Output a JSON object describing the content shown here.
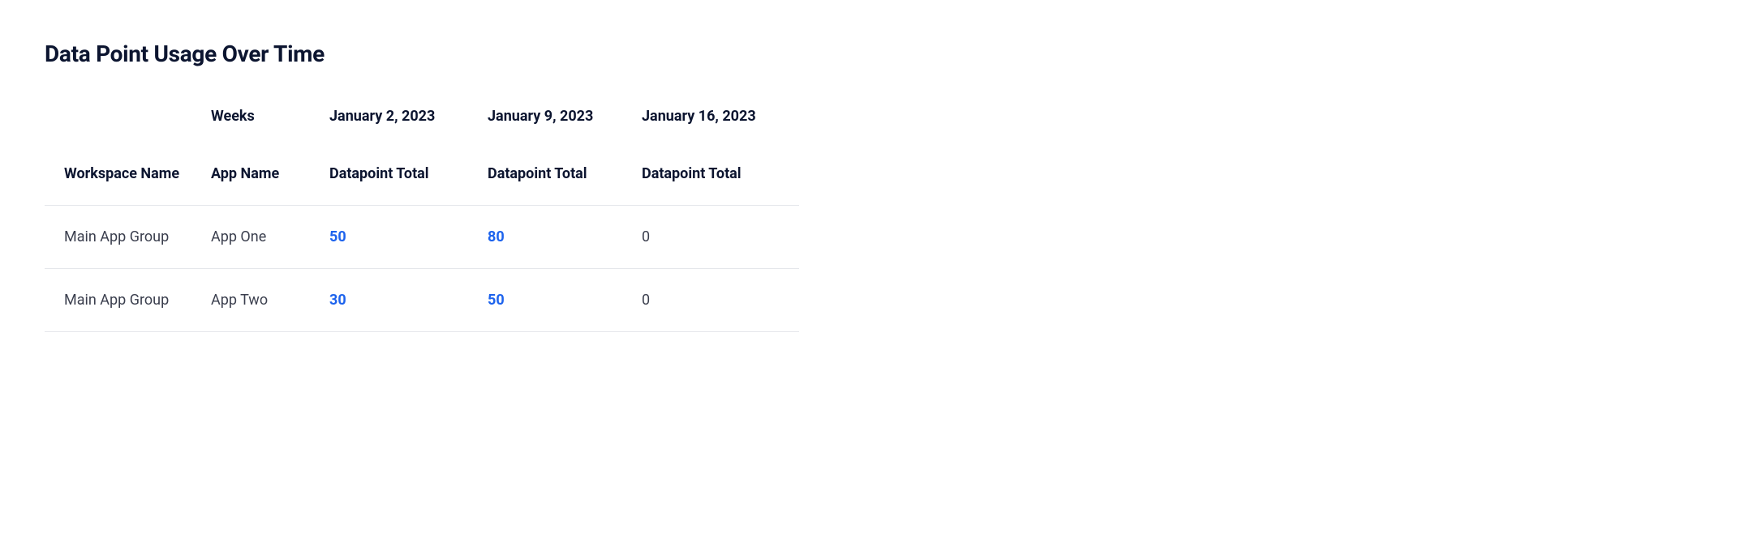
{
  "title": "Data Point Usage Over Time",
  "table": {
    "header_row_1": {
      "col_workspace": "",
      "col_app": "Weeks",
      "date_columns": [
        "January 2, 2023",
        "January 9, 2023",
        "January 16, 2023"
      ]
    },
    "header_row_2": {
      "col_workspace": "Workspace Name",
      "col_app": "App Name",
      "value_labels": [
        "Datapoint Total",
        "Datapoint Total",
        "Datapoint Total"
      ]
    },
    "rows": [
      {
        "workspace": "Main App Group",
        "app": "App One",
        "values": [
          {
            "text": "50",
            "link": true
          },
          {
            "text": "80",
            "link": true
          },
          {
            "text": "0",
            "link": false
          }
        ]
      },
      {
        "workspace": "Main App Group",
        "app": "App Two",
        "values": [
          {
            "text": "30",
            "link": true
          },
          {
            "text": "50",
            "link": true
          },
          {
            "text": "0",
            "link": false
          }
        ]
      }
    ]
  },
  "colors": {
    "heading": "#0c1530",
    "body_text": "#3b3f4e",
    "link": "#1d63ed",
    "row_border": "#e5e7eb",
    "background": "#ffffff"
  }
}
